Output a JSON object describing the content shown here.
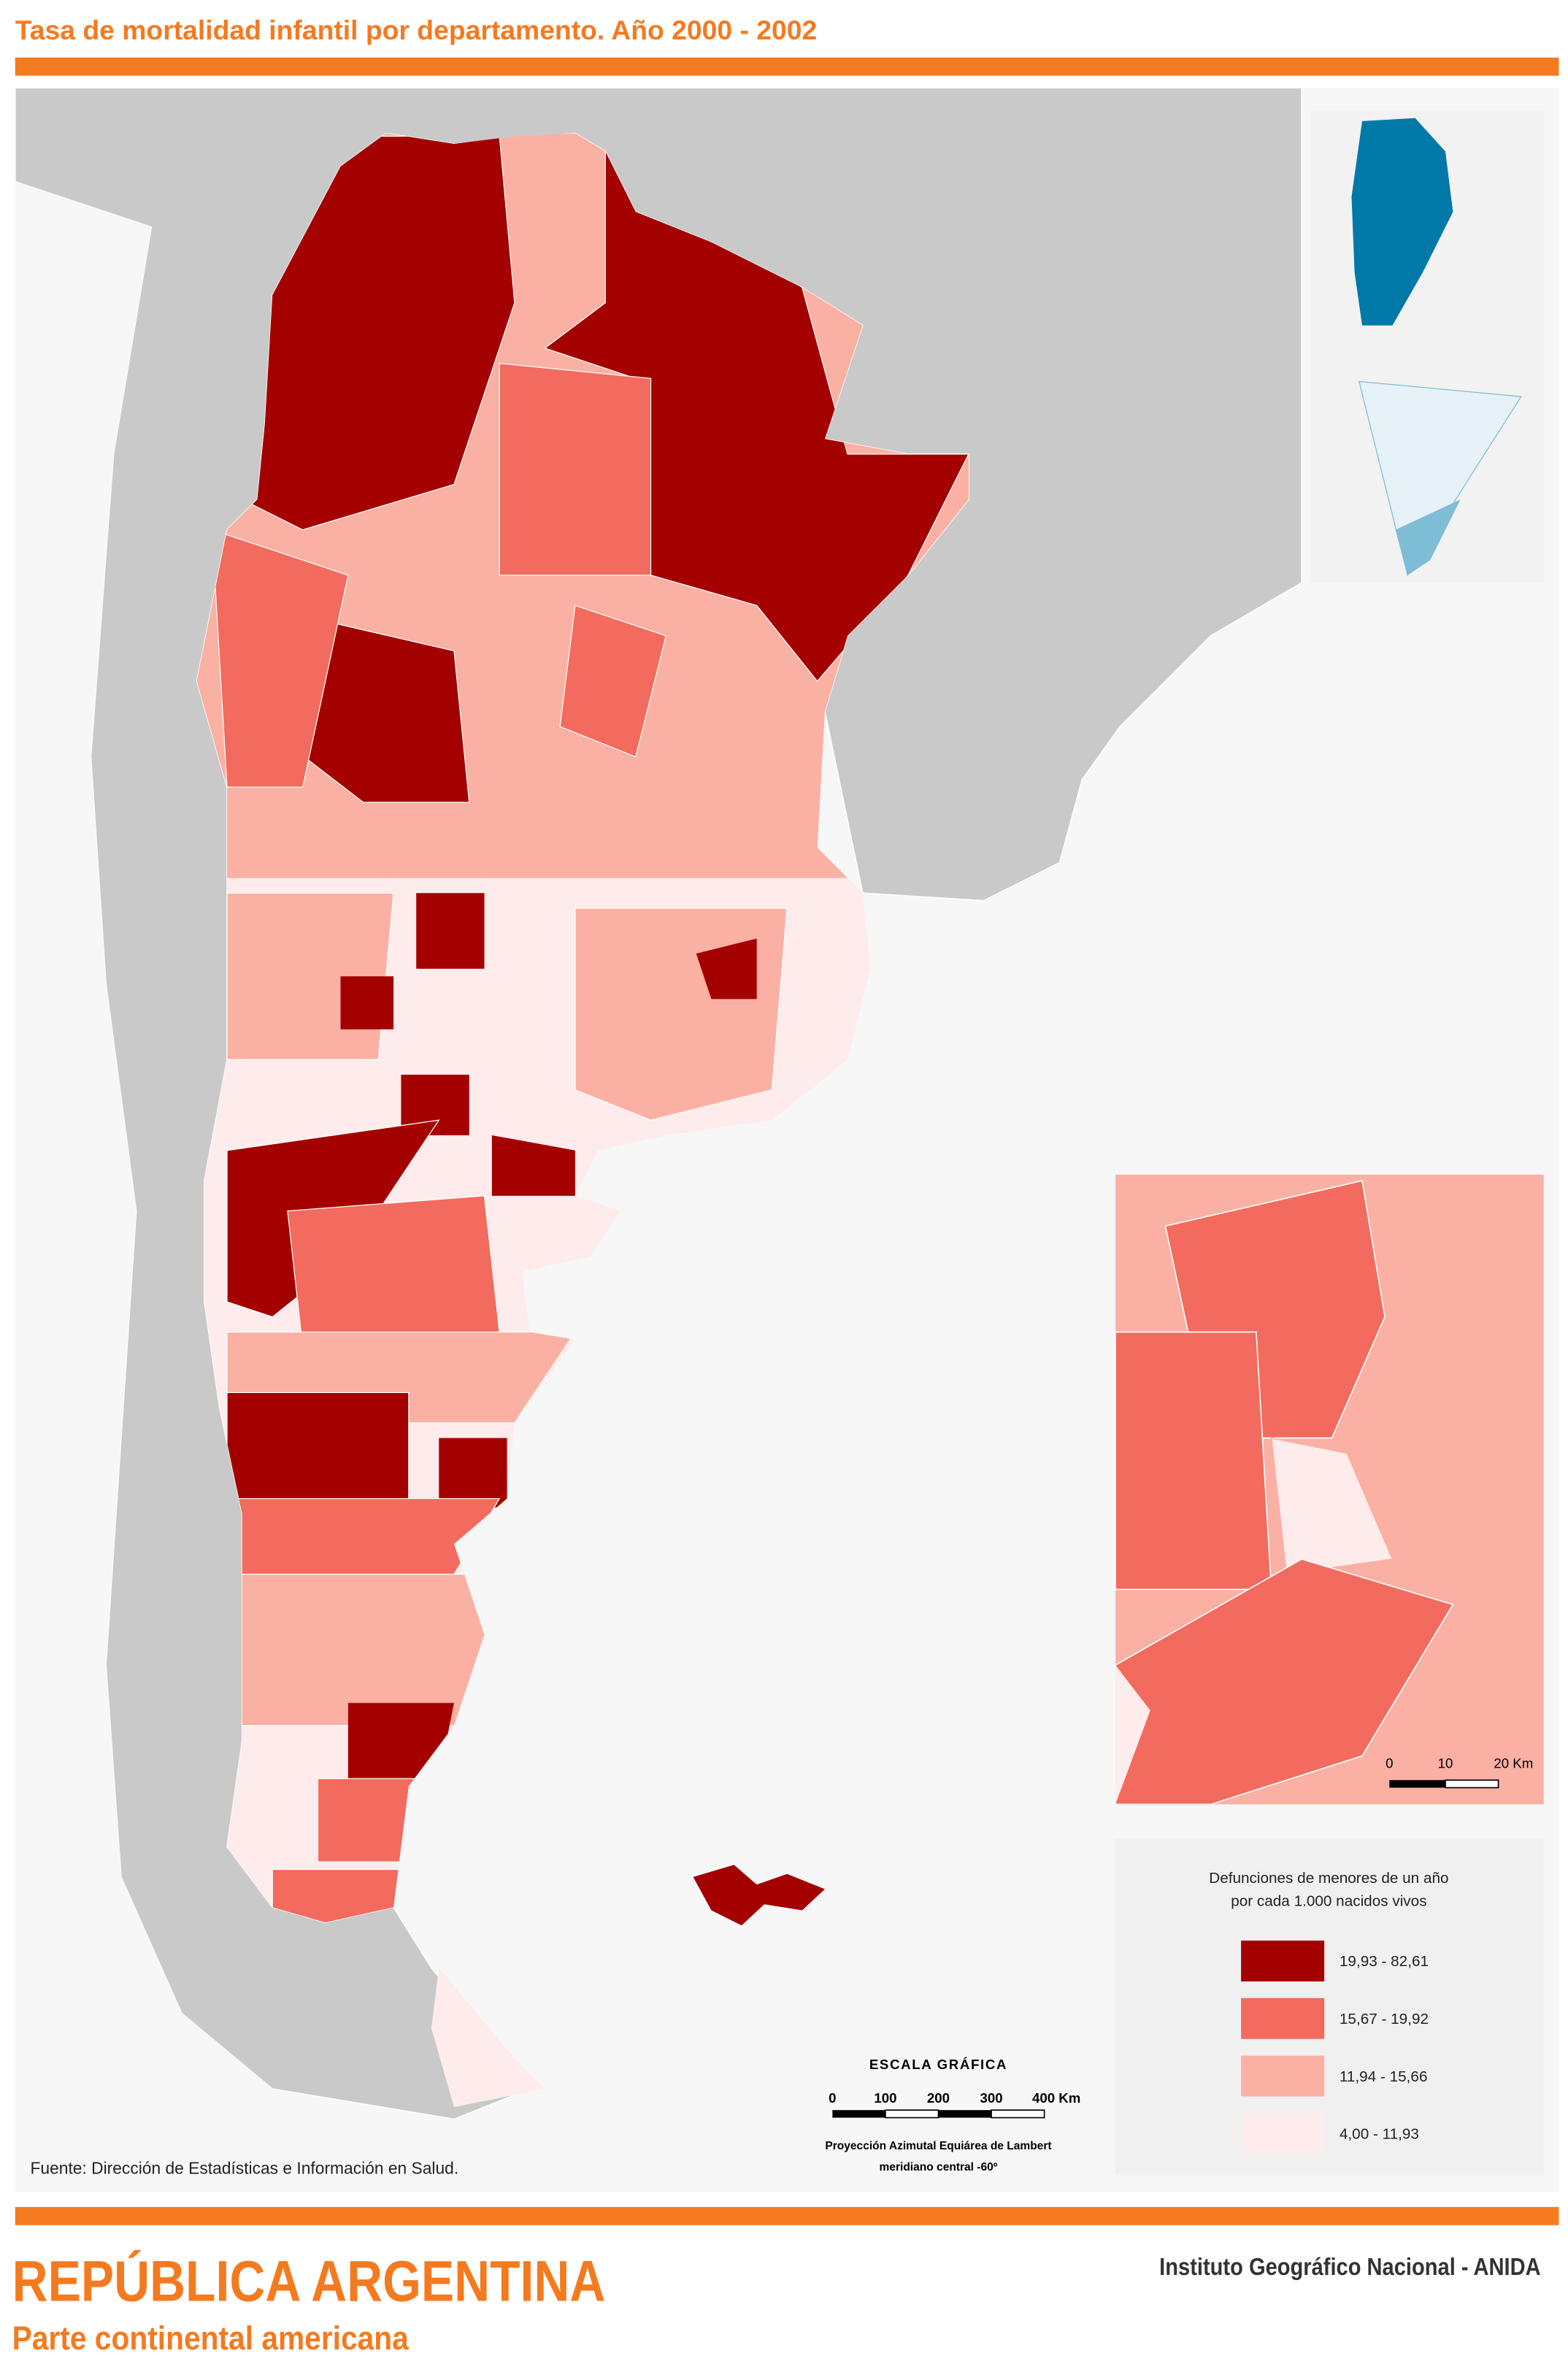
{
  "header": {
    "title": "Tasa de mortalidad infantil por departamento. Año 2000 - 2002"
  },
  "legend": {
    "title_lines": [
      "Defunciones de menores de un año",
      "por cada 1.000 nacidos vivos"
    ],
    "classes": [
      {
        "color": "#a50000",
        "label": "19,93 - 82,61"
      },
      {
        "color": "#f26b5e",
        "label": "15,67 - 19,92"
      },
      {
        "color": "#fbb0a4",
        "label": "11,94 - 15,66"
      },
      {
        "color": "#fdeceb",
        "label": "4,00 - 11,93"
      }
    ]
  },
  "scale_bar": {
    "title": "ESCALA GRÁFICA",
    "labels": [
      "0",
      "100",
      "200",
      "300",
      "400 Km"
    ]
  },
  "inset_scale": {
    "labels": [
      "0",
      "10",
      "20 Km"
    ]
  },
  "projection": [
    "Proyección Azimutal Equiárea de Lambert",
    "meridiano central -60º"
  ],
  "source": "Fuente: Dirección de Estadísticas e Información en Salud.",
  "footer": {
    "title": "REPÚBLICA ARGENTINA",
    "subtitle": "Parte continental americana",
    "institution": "Instituto Geográfico Nacional - ANIDA"
  }
}
